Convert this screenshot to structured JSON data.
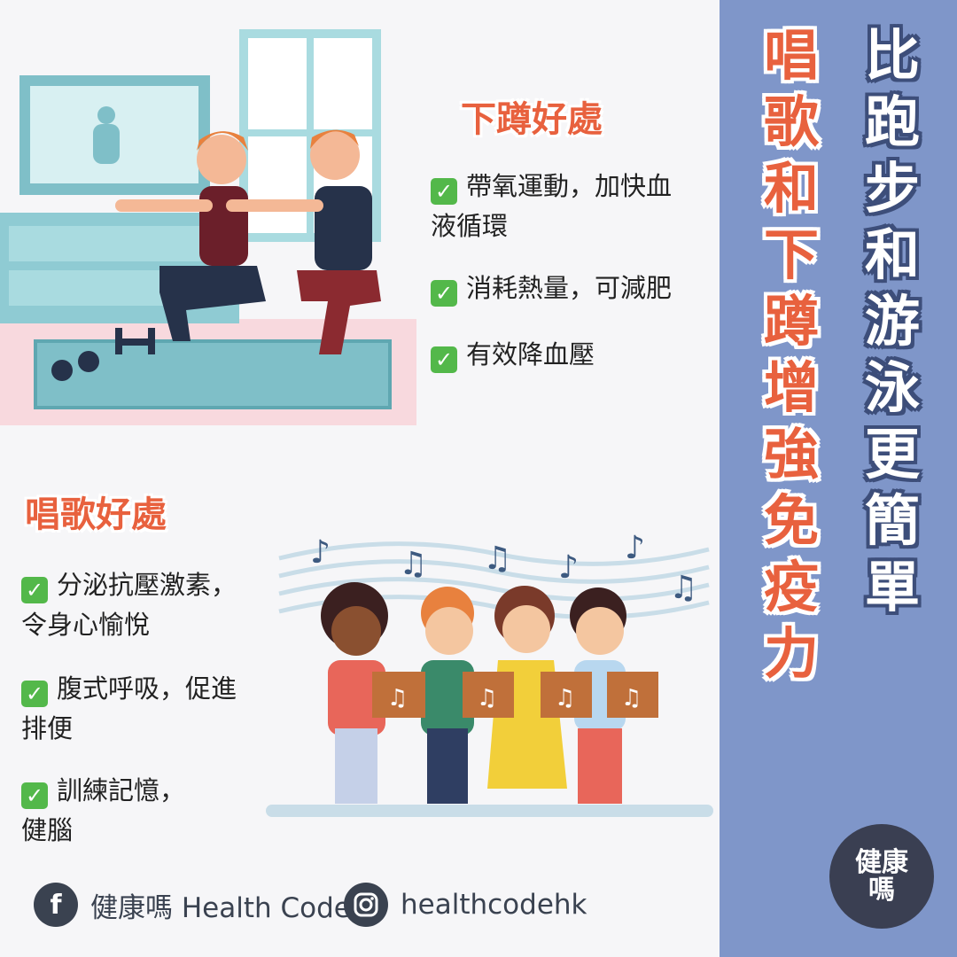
{
  "side": {
    "title_red": [
      "唱",
      "歌",
      "和",
      "下",
      "蹲",
      "增",
      "強",
      "免",
      "疫",
      "力"
    ],
    "title_white": [
      "比",
      "跑",
      "步",
      "和",
      "游",
      "泳",
      "更",
      "簡",
      "單"
    ],
    "logo_line1": "健康",
    "logo_line2": "嗎"
  },
  "squat": {
    "title": "下蹲好處",
    "items": [
      [
        "帶氧運動，加快血",
        "液循環"
      ],
      [
        "消耗熱量，可減肥"
      ],
      [
        "有效降血壓"
      ]
    ]
  },
  "singing": {
    "title": "唱歌好處",
    "items": [
      [
        "分泌抗壓激素，",
        "令身心愉悅"
      ],
      [
        "腹式呼吸，促進",
        "排便"
      ],
      [
        "訓練記憶，",
        "健腦"
      ]
    ]
  },
  "check_icon": "✓",
  "footer": {
    "facebook_icon": "f",
    "facebook_label": "健康嗎 Health Code",
    "instagram_label": "healthcodehk"
  },
  "colors": {
    "accent": "#e8613e",
    "panel": "#7f96c9",
    "check": "#53b84a"
  }
}
